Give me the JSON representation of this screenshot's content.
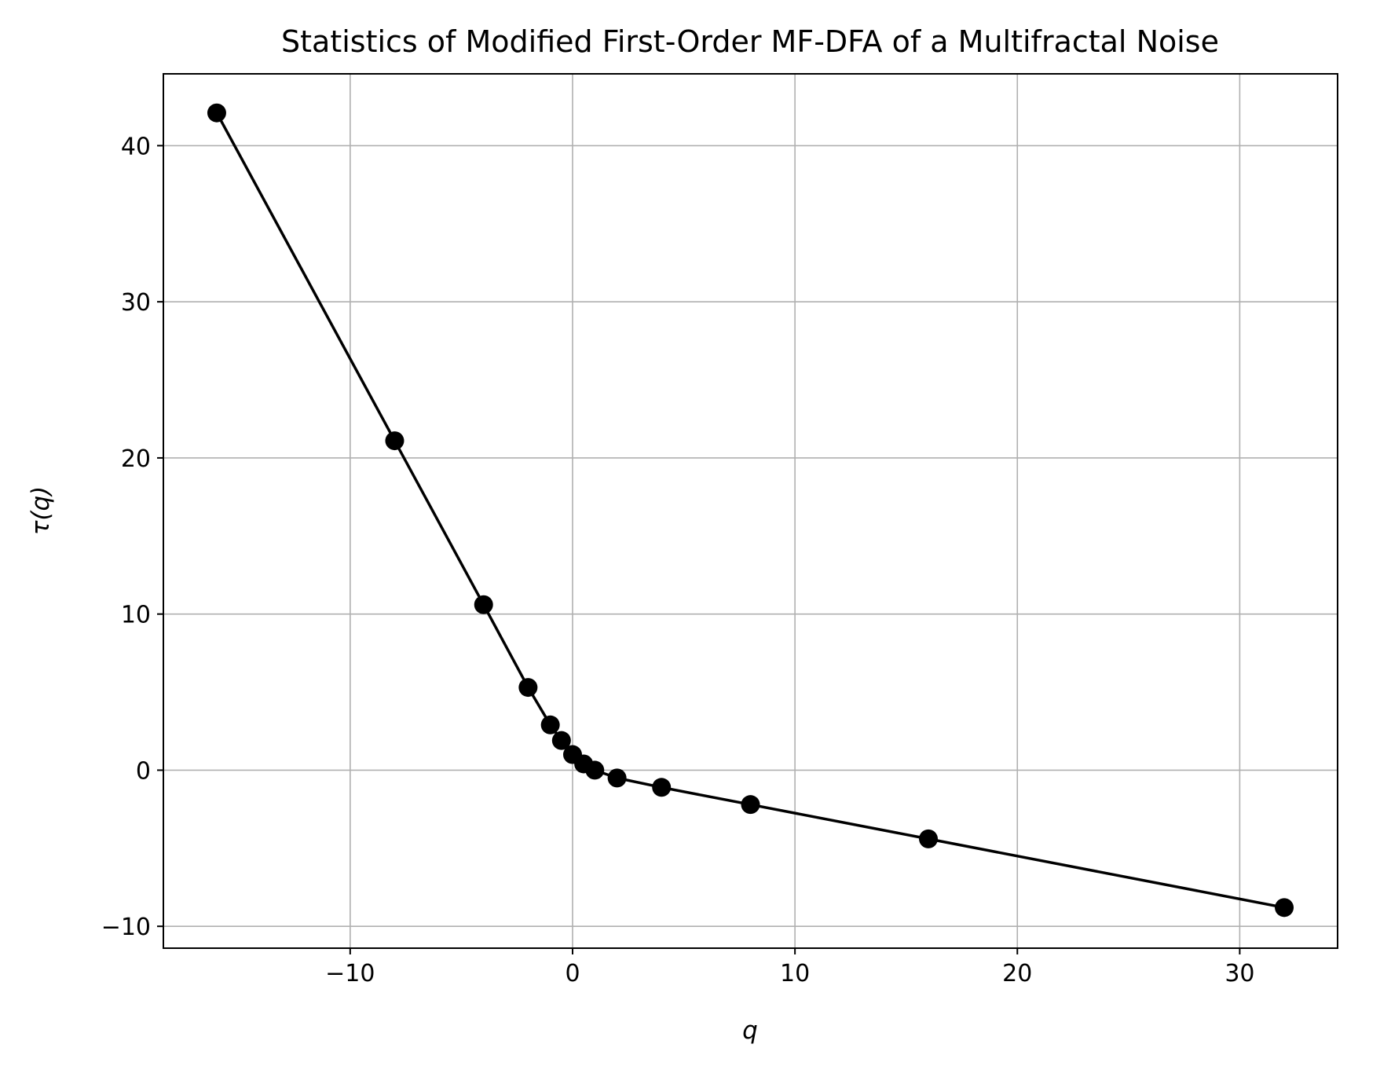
{
  "chart_data": {
    "type": "line",
    "title": "Statistics of Modified First-Order MF-DFA of a Multifractal Noise",
    "xlabel": "q",
    "ylabel": "τ(q)",
    "xlim": [
      -18.4,
      34.4
    ],
    "ylim": [
      -11.4,
      44.6
    ],
    "grid": true,
    "x_ticks": [
      -10,
      0,
      10,
      20,
      30
    ],
    "x_tick_labels": [
      "−10",
      "0",
      "10",
      "20",
      "30"
    ],
    "y_ticks": [
      -10,
      0,
      10,
      20,
      30,
      40
    ],
    "y_tick_labels": [
      "−10",
      "0",
      "10",
      "20",
      "30",
      "40"
    ],
    "series": [
      {
        "color": "#000000",
        "marker": "circle",
        "x": [
          -16,
          -8,
          -4,
          -2,
          -1,
          -0.5,
          0,
          0.5,
          1,
          2,
          4,
          8,
          16,
          32
        ],
        "y": [
          42.1,
          21.1,
          10.6,
          5.3,
          2.9,
          1.9,
          1.0,
          0.4,
          0.0,
          -0.5,
          -1.1,
          -2.2,
          -4.4,
          -8.8
        ]
      }
    ]
  }
}
